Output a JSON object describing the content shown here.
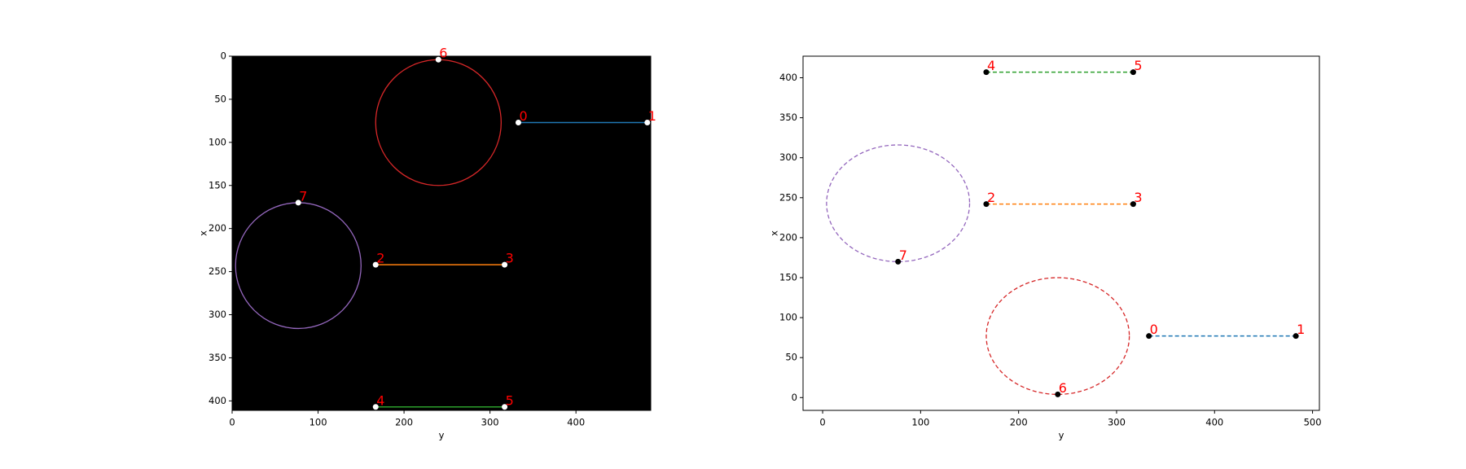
{
  "chart_data": [
    {
      "type": "scatter",
      "xlabel": "y",
      "ylabel": "x",
      "background": "#000000",
      "point_color": "#ffffff",
      "linestyle": "solid",
      "xlim": [
        0,
        487
      ],
      "ylim": [
        411,
        0
      ],
      "xticks": [
        0,
        100,
        200,
        300,
        400
      ],
      "yticks": [
        0,
        50,
        100,
        150,
        200,
        250,
        300,
        350,
        400
      ],
      "points": {
        "labels": [
          "0",
          "1",
          "2",
          "3",
          "4",
          "5",
          "6",
          "7"
        ],
        "x": [
          333,
          483,
          167,
          317,
          167,
          317,
          240,
          77
        ],
        "y": [
          77,
          77,
          242,
          242,
          407,
          407,
          4,
          170
        ]
      },
      "series": [
        {
          "color": "#1f77b4",
          "x": [
            333,
            483
          ],
          "y": [
            77,
            77
          ]
        },
        {
          "color": "#ff7f0e",
          "x": [
            167,
            317
          ],
          "y": [
            242,
            242
          ]
        },
        {
          "color": "#2ca02c",
          "x": [
            167,
            317
          ],
          "y": [
            407,
            407
          ]
        }
      ],
      "circles": [
        {
          "color": "#d62728",
          "cx": 240,
          "cy": 77,
          "r": 73
        },
        {
          "color": "#9467bd",
          "cx": 77,
          "cy": 243,
          "r": 73
        }
      ]
    },
    {
      "type": "scatter",
      "xlabel": "y",
      "ylabel": "x",
      "background": "#ffffff",
      "point_color": "#000000",
      "linestyle": "dashed",
      "xlim": [
        -20,
        507
      ],
      "ylim": [
        -16,
        427
      ],
      "xticks": [
        0,
        100,
        200,
        300,
        400,
        500
      ],
      "yticks": [
        0,
        50,
        100,
        150,
        200,
        250,
        300,
        350,
        400
      ],
      "points": {
        "labels": [
          "0",
          "1",
          "2",
          "3",
          "4",
          "5",
          "6",
          "7"
        ],
        "x": [
          333,
          483,
          167,
          317,
          167,
          317,
          240,
          77
        ],
        "y": [
          77,
          77,
          242,
          242,
          407,
          407,
          4,
          170
        ]
      },
      "series": [
        {
          "color": "#1f77b4",
          "x": [
            333,
            483
          ],
          "y": [
            77,
            77
          ]
        },
        {
          "color": "#ff7f0e",
          "x": [
            167,
            317
          ],
          "y": [
            242,
            242
          ]
        },
        {
          "color": "#2ca02c",
          "x": [
            167,
            317
          ],
          "y": [
            407,
            407
          ]
        }
      ],
      "circles": [
        {
          "color": "#d62728",
          "cx": 240,
          "cy": 77,
          "r": 73
        },
        {
          "color": "#9467bd",
          "cx": 77,
          "cy": 243,
          "r": 73
        }
      ]
    }
  ]
}
